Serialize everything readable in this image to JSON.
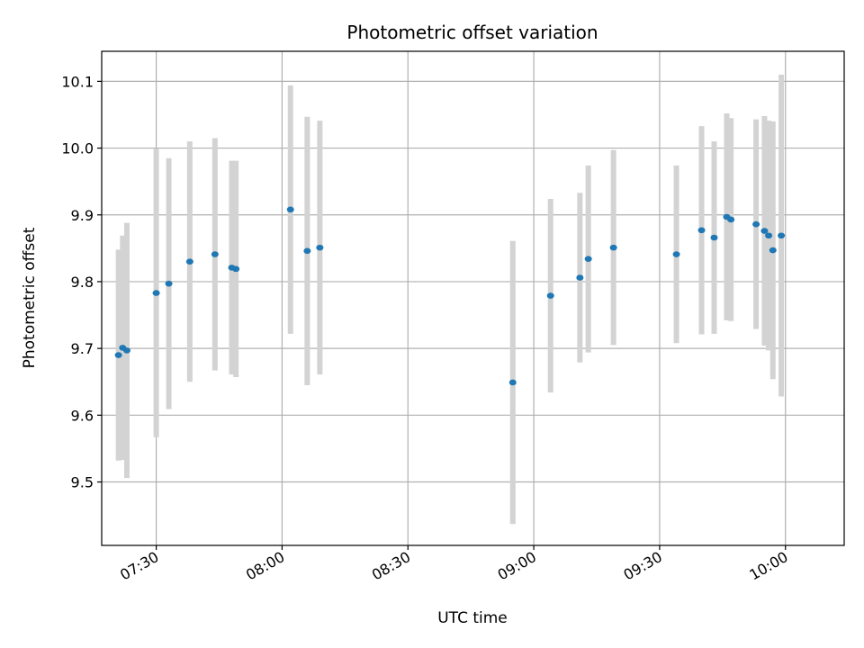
{
  "chart_data": {
    "type": "scatter",
    "title": "Photometric offset variation",
    "xlabel": "UTC time",
    "ylabel": "Photometric offset",
    "xlim": [
      "07:17",
      "10:14"
    ],
    "ylim": [
      9.405,
      10.145
    ],
    "x_ticks": [
      "07:30",
      "08:00",
      "08:30",
      "09:00",
      "09:30",
      "10:00"
    ],
    "y_ticks": [
      9.5,
      9.6,
      9.7,
      9.8,
      9.9,
      10.0,
      10.1
    ],
    "grid": true,
    "colors": {
      "point": "#1f77b4",
      "errorbar": "#d3d3d3",
      "grid": "#b0b0b0"
    },
    "points": [
      {
        "t": "07:21",
        "y": 9.69,
        "err": 0.158
      },
      {
        "t": "07:22",
        "y": 9.701,
        "err": 0.168
      },
      {
        "t": "07:23",
        "y": 9.697,
        "err": 0.191
      },
      {
        "t": "07:30",
        "y": 9.783,
        "err": 0.216
      },
      {
        "t": "07:33",
        "y": 9.797,
        "err": 0.188
      },
      {
        "t": "07:38",
        "y": 9.83,
        "err": 0.18
      },
      {
        "t": "07:44",
        "y": 9.841,
        "err": 0.174
      },
      {
        "t": "07:48",
        "y": 9.821,
        "err": 0.16
      },
      {
        "t": "07:49",
        "y": 9.819,
        "err": 0.162
      },
      {
        "t": "08:02",
        "y": 9.908,
        "err": 0.186
      },
      {
        "t": "08:06",
        "y": 9.846,
        "err": 0.201
      },
      {
        "t": "08:09",
        "y": 9.851,
        "err": 0.19
      },
      {
        "t": "08:55",
        "y": 9.649,
        "err": 0.212
      },
      {
        "t": "09:04",
        "y": 9.779,
        "err": 0.145
      },
      {
        "t": "09:11",
        "y": 9.806,
        "err": 0.127
      },
      {
        "t": "09:13",
        "y": 9.834,
        "err": 0.14
      },
      {
        "t": "09:19",
        "y": 9.851,
        "err": 0.146
      },
      {
        "t": "09:34",
        "y": 9.841,
        "err": 0.133
      },
      {
        "t": "09:40",
        "y": 9.877,
        "err": 0.156
      },
      {
        "t": "09:43",
        "y": 9.866,
        "err": 0.144
      },
      {
        "t": "09:46",
        "y": 9.897,
        "err": 0.155
      },
      {
        "t": "09:47",
        "y": 9.893,
        "err": 0.152
      },
      {
        "t": "09:53",
        "y": 9.886,
        "err": 0.157
      },
      {
        "t": "09:55",
        "y": 9.876,
        "err": 0.172
      },
      {
        "t": "09:56",
        "y": 9.869,
        "err": 0.172
      },
      {
        "t": "09:57",
        "y": 9.847,
        "err": 0.193
      },
      {
        "t": "09:59",
        "y": 9.869,
        "err": 0.241
      }
    ]
  }
}
